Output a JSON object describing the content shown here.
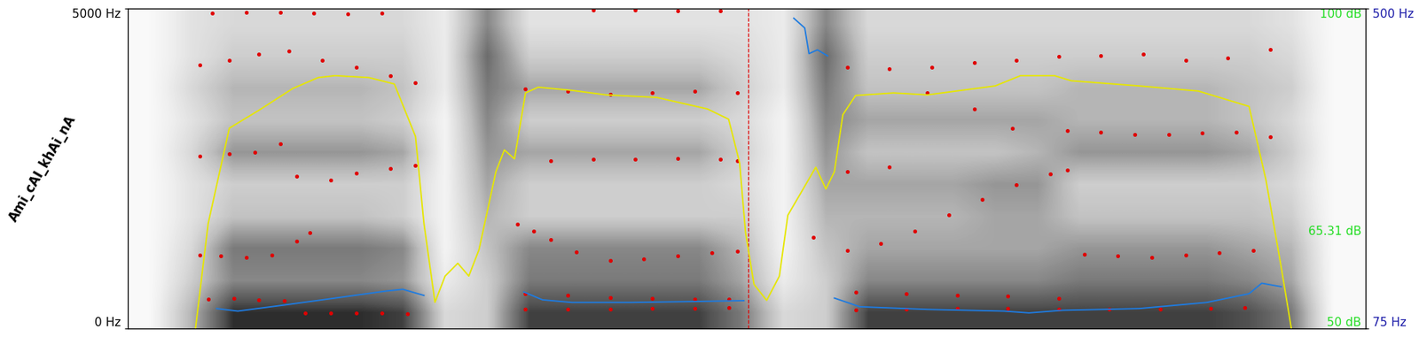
{
  "chart_data": {
    "type": "spectrogram",
    "label": "Ami_cAI_khAi_nA",
    "xlim": [
      0,
      1.463
    ],
    "xticks": [],
    "ylim": [
      0,
      5000
    ],
    "yticks": [
      {
        "value": 0,
        "label": "0 Hz"
      },
      {
        "value": 5000,
        "label": "5000 Hz"
      }
    ],
    "y2lim": [
      50,
      100
    ],
    "y2ticks": [
      {
        "value": 50,
        "label": "50 dB"
      },
      {
        "value": 65.31,
        "label": "65.31 dB"
      },
      {
        "value": 100,
        "label": "100 dB"
      }
    ],
    "y3lim": [
      75,
      500
    ],
    "y3ticks": [
      {
        "value": 75,
        "label": "75 Hz"
      },
      {
        "value": 500,
        "label": "500 Hz"
      }
    ],
    "cursor": 0.733,
    "spectrogram": {
      "t_edges": [
        0,
        1.5
      ],
      "f_edges": [
        0,
        5000
      ],
      "cells_by_time": [
        [
          0.05,
          0.05,
          0.05,
          0.05,
          0.05,
          0.05,
          0.05,
          0.05,
          0.05,
          0.05
        ],
        [
          0.4,
          0.3,
          0.25,
          0.2,
          0.2,
          0.25,
          0.2,
          0.25,
          0.2,
          0.2
        ],
        [
          0.85,
          0.55,
          0.6,
          0.35,
          0.3,
          0.5,
          0.35,
          0.4,
          0.3,
          0.25
        ],
        [
          0.85,
          0.55,
          0.6,
          0.35,
          0.3,
          0.5,
          0.35,
          0.4,
          0.3,
          0.25
        ],
        [
          0.85,
          0.55,
          0.6,
          0.35,
          0.3,
          0.5,
          0.35,
          0.4,
          0.3,
          0.25
        ],
        [
          0.85,
          0.55,
          0.6,
          0.35,
          0.3,
          0.5,
          0.35,
          0.4,
          0.3,
          0.25
        ],
        [
          0.8,
          0.5,
          0.55,
          0.3,
          0.3,
          0.45,
          0.3,
          0.35,
          0.3,
          0.25
        ],
        [
          0.25,
          0.15,
          0.1,
          0.1,
          0.1,
          0.1,
          0.1,
          0.15,
          0.15,
          0.15
        ],
        [
          0.3,
          0.3,
          0.35,
          0.4,
          0.45,
          0.5,
          0.55,
          0.6,
          0.65,
          0.55
        ],
        [
          0.8,
          0.6,
          0.55,
          0.3,
          0.3,
          0.45,
          0.3,
          0.45,
          0.3,
          0.2
        ],
        [
          0.8,
          0.6,
          0.55,
          0.3,
          0.3,
          0.45,
          0.3,
          0.45,
          0.3,
          0.2
        ],
        [
          0.8,
          0.6,
          0.55,
          0.3,
          0.3,
          0.45,
          0.3,
          0.45,
          0.3,
          0.2
        ],
        [
          0.8,
          0.6,
          0.55,
          0.3,
          0.3,
          0.45,
          0.3,
          0.45,
          0.3,
          0.2
        ],
        [
          0.8,
          0.6,
          0.55,
          0.3,
          0.3,
          0.45,
          0.3,
          0.45,
          0.3,
          0.2
        ],
        [
          0.6,
          0.45,
          0.4,
          0.3,
          0.25,
          0.3,
          0.25,
          0.3,
          0.25,
          0.2
        ],
        [
          0.25,
          0.15,
          0.1,
          0.1,
          0.1,
          0.1,
          0.1,
          0.15,
          0.15,
          0.15
        ],
        [
          0.3,
          0.3,
          0.35,
          0.4,
          0.45,
          0.5,
          0.55,
          0.6,
          0.65,
          0.55
        ],
        [
          0.8,
          0.55,
          0.45,
          0.4,
          0.45,
          0.35,
          0.45,
          0.35,
          0.3,
          0.25
        ],
        [
          0.8,
          0.55,
          0.45,
          0.4,
          0.45,
          0.35,
          0.45,
          0.35,
          0.3,
          0.25
        ],
        [
          0.8,
          0.55,
          0.45,
          0.4,
          0.45,
          0.35,
          0.45,
          0.35,
          0.3,
          0.25
        ],
        [
          0.8,
          0.55,
          0.45,
          0.45,
          0.5,
          0.35,
          0.45,
          0.35,
          0.3,
          0.25
        ],
        [
          0.8,
          0.55,
          0.45,
          0.45,
          0.5,
          0.4,
          0.45,
          0.35,
          0.3,
          0.25
        ],
        [
          0.8,
          0.6,
          0.5,
          0.35,
          0.3,
          0.5,
          0.4,
          0.4,
          0.3,
          0.25
        ],
        [
          0.8,
          0.6,
          0.5,
          0.35,
          0.3,
          0.5,
          0.4,
          0.4,
          0.3,
          0.25
        ],
        [
          0.8,
          0.6,
          0.5,
          0.35,
          0.3,
          0.5,
          0.4,
          0.4,
          0.3,
          0.25
        ],
        [
          0.8,
          0.6,
          0.5,
          0.35,
          0.3,
          0.5,
          0.4,
          0.4,
          0.3,
          0.25
        ],
        [
          0.75,
          0.55,
          0.45,
          0.35,
          0.3,
          0.45,
          0.35,
          0.35,
          0.3,
          0.25
        ],
        [
          0.6,
          0.45,
          0.4,
          0.3,
          0.25,
          0.3,
          0.25,
          0.3,
          0.25,
          0.2
        ],
        [
          0.05,
          0.05,
          0.05,
          0.05,
          0.05,
          0.05,
          0.05,
          0.05,
          0.05,
          0.05
        ],
        [
          0.05,
          0.05,
          0.05,
          0.05,
          0.05,
          0.05,
          0.05,
          0.05,
          0.05,
          0.05
        ]
      ]
    },
    "series": [
      {
        "type": "scatter",
        "color": "#e00000",
        "marker": "o",
        "x": [
          0.21,
          0.24,
          0.27,
          0.3,
          0.33,
          0.47,
          0.52,
          0.57,
          0.62,
          0.67,
          0.71,
          0.86,
          0.92,
          0.98,
          1.04,
          1.1,
          1.16,
          1.22,
          1.28,
          1.32
        ],
        "values": [
          245,
          245,
          245,
          245,
          232,
          300,
          300,
          300,
          313,
          313,
          327,
          286,
          300,
          313,
          313,
          300,
          300,
          300,
          313,
          327
        ]
      },
      {
        "type": "scatter",
        "color": "#e00000",
        "marker": "o",
        "x": [
          0.095,
          0.125,
          0.155,
          0.185,
          0.47,
          0.52,
          0.57,
          0.62,
          0.67,
          0.71,
          0.86,
          0.92,
          0.98,
          1.04,
          1.1
        ],
        "values": [
          463,
          477,
          449,
          436,
          545,
          518,
          490,
          477,
          463,
          463,
          572,
          545,
          518,
          504,
          477
        ]
      },
      {
        "type": "scatter",
        "color": "#e00000",
        "marker": "o",
        "x": [
          0.085,
          0.11,
          0.14,
          0.17,
          0.2,
          0.215,
          0.46,
          0.48,
          0.5,
          0.53,
          0.57,
          0.61,
          0.65,
          0.69,
          0.72,
          0.81,
          0.85,
          0.89,
          0.93,
          0.97,
          1.01,
          1.05,
          1.09,
          1.11,
          1.13,
          1.17,
          1.21,
          1.25,
          1.29,
          1.33
        ],
        "values": [
          1144,
          1130,
          1117,
          1144,
          1362,
          1498,
          1634,
          1525,
          1389,
          1199,
          1062,
          1090,
          1130,
          1185,
          1212,
          1430,
          1226,
          1335,
          1525,
          1771,
          2016,
          2247,
          2411,
          2479,
          1158,
          1130,
          1117,
          1144,
          1185,
          1226
        ]
      },
      {
        "type": "scatter",
        "color": "#e00000",
        "marker": "o",
        "x": [
          0.085,
          0.12,
          0.15,
          0.18,
          0.2,
          0.24,
          0.27,
          0.31,
          0.34,
          0.5,
          0.55,
          0.6,
          0.65,
          0.7,
          0.72,
          0.85,
          0.9,
          0.945,
          1.0,
          1.045,
          1.11,
          1.15,
          1.19,
          1.23,
          1.27,
          1.31,
          1.35
        ],
        "values": [
          2697,
          2724,
          2751,
          2887,
          2384,
          2315,
          2424,
          2506,
          2547,
          2615,
          2642,
          2642,
          2656,
          2642,
          2615,
          2452,
          2520,
          3677,
          3432,
          3133,
          3092,
          3065,
          3037,
          3037,
          3051,
          3065,
          2996
        ]
      },
      {
        "type": "scatter",
        "color": "#e00000",
        "marker": "o",
        "x": [
          0.085,
          0.12,
          0.155,
          0.19,
          0.23,
          0.27,
          0.31,
          0.34,
          0.47,
          0.52,
          0.57,
          0.62,
          0.67,
          0.72,
          0.85,
          0.9,
          0.95,
          1.0,
          1.05,
          1.1,
          1.15,
          1.2,
          1.25,
          1.3,
          1.35
        ],
        "values": [
          4113,
          4195,
          4290,
          4331,
          4195,
          4086,
          3950,
          3841,
          3746,
          3705,
          3664,
          3677,
          3705,
          3677,
          4086,
          4059,
          4086,
          4154,
          4195,
          4249,
          4263,
          4290,
          4195,
          4222,
          4358
        ]
      },
      {
        "type": "scatter",
        "color": "#e00000",
        "marker": "o",
        "x": [
          0.1,
          0.14,
          0.18,
          0.22,
          0.26,
          0.3,
          0.55,
          0.6,
          0.65,
          0.7
        ],
        "values": [
          4930,
          4944,
          4944,
          4930,
          4916,
          4930,
          4971,
          4971,
          4958,
          4958
        ]
      },
      {
        "type": "line",
        "axis": "y2",
        "color": "#e6e600",
        "x": [
          0.08,
          0.095,
          0.12,
          0.155,
          0.195,
          0.225,
          0.245,
          0.285,
          0.315,
          0.34,
          0.35,
          0.363,
          0.375,
          0.39,
          0.403,
          0.415,
          0.435,
          0.445,
          0.457,
          0.47,
          0.485,
          0.525,
          0.565,
          0.625,
          0.685,
          0.71,
          0.723,
          0.73,
          0.74,
          0.755,
          0.77,
          0.78,
          0.795,
          0.813,
          0.825,
          0.835,
          0.845,
          0.86,
          0.905,
          0.945,
          1.025,
          1.055,
          1.095,
          1.115,
          1.195,
          1.265,
          1.325,
          1.345,
          1.363,
          1.375
        ],
        "values": [
          50,
          66.4,
          81.3,
          84.1,
          87.5,
          89.2,
          89.5,
          89.2,
          88.2,
          80,
          66.4,
          54.1,
          58.2,
          60.2,
          58.2,
          62.3,
          74.5,
          77.9,
          76.5,
          86.8,
          87.7,
          87.2,
          86.5,
          86.1,
          84.3,
          82.7,
          75.9,
          65,
          56.9,
          54.4,
          58.2,
          67.7,
          71.1,
          75.2,
          71.8,
          74.5,
          83.4,
          86.4,
          86.8,
          86.5,
          87.9,
          89.5,
          89.5,
          88.7,
          87.9,
          87.1,
          84.7,
          73.2,
          59.6,
          50
        ]
      },
      {
        "type": "line",
        "axis": "y3",
        "color": "#1e7be0",
        "x": [
          0.105,
          0.13,
          0.185,
          0.245,
          0.305,
          0.325,
          0.35,
          0.41,
          0.468,
          0.49,
          0.525,
          0.595,
          0.665,
          0.728,
          0.76,
          0.787,
          0.8,
          0.805,
          0.815,
          0.827,
          0.831,
          0.835,
          0.865,
          0.945,
          1.035,
          1.065,
          1.105,
          1.195,
          1.275,
          1.325,
          1.34,
          1.363
        ],
        "values": [
          101.6,
          98.2,
          106.3,
          115.5,
          124.8,
          127.1,
          119,
          null,
          123.6,
          113.2,
          109.7,
          109.7,
          110.9,
          112.1,
          null,
          487,
          474,
          440,
          445,
          437,
          null,
          115.5,
          104,
          100.5,
          98.2,
          95.8,
          99.3,
          101.6,
          109.7,
          121.3,
          135.2,
          130.6
        ]
      }
    ]
  }
}
